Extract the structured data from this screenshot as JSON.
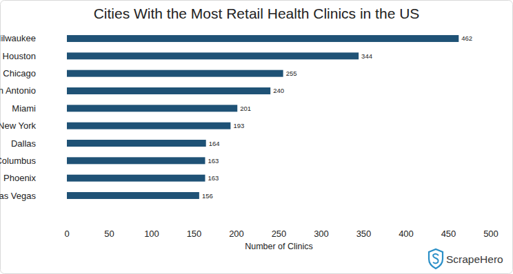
{
  "chart_data": {
    "type": "bar",
    "orientation": "horizontal",
    "title": "Cities With the Most Retail Health Clinics in the US",
    "categories": [
      "Milwaukee",
      "Houston",
      "Chicago",
      "San Antonio",
      "Miami",
      "New York",
      "Dallas",
      "Columbus",
      "Phoenix",
      "Las Vegas"
    ],
    "values": [
      462,
      344,
      255,
      240,
      201,
      193,
      164,
      163,
      163,
      156
    ],
    "color": "#1f5276",
    "xlim": [
      0,
      500
    ],
    "xticks": [
      0,
      50,
      100,
      150,
      200,
      250,
      300,
      350,
      400,
      450,
      500
    ],
    "xlabel": "Number of Clinics",
    "grid": false,
    "data_labels": true,
    "annotations": [
      "ScrapeHero"
    ]
  }
}
